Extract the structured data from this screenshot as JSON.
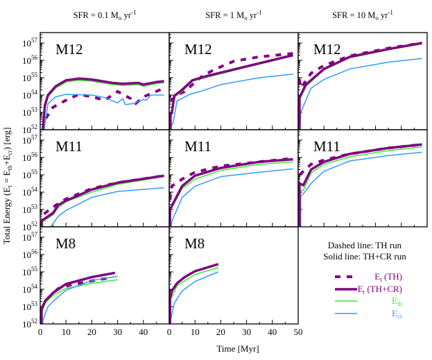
{
  "chart_data": {
    "type": "line",
    "column_titles": [
      {
        "prefix": "SFR = 0.1 M",
        "sub": "o",
        "unit": " yr",
        "sup": "-1"
      },
      {
        "prefix": "SFR = 1 M",
        "sub": "o",
        "unit": " yr",
        "sup": "-1"
      },
      {
        "prefix": "SFR = 10 M",
        "sub": "o",
        "unit": " yr",
        "sup": "-1"
      }
    ],
    "xlabel": "Time [Myr]",
    "ylabel": {
      "a": "Total Energy (E",
      "b": "t",
      "c": " = E",
      "d": "th",
      "e": "+E",
      "f": "cr",
      "g": ") [erg]"
    },
    "xlim": [
      0,
      50
    ],
    "ylim": [
      1e+52,
      4e+57
    ],
    "yscale": "log",
    "x_ticks": [
      "0",
      "10",
      "20",
      "30",
      "40",
      "50"
    ],
    "y_ticks": [
      {
        "base": "10",
        "exp": "52"
      },
      {
        "base": "10",
        "exp": "53"
      },
      {
        "base": "10",
        "exp": "54"
      },
      {
        "base": "10",
        "exp": "55"
      },
      {
        "base": "10",
        "exp": "56"
      },
      {
        "base": "10",
        "exp": "57"
      }
    ],
    "grid": false,
    "colors": {
      "total": "#800080",
      "thermal": "#33ee22",
      "cosmic_ray": "#3399ff"
    },
    "legend": {
      "note_1": "Dashed line: TH run",
      "note_2": "Solid line: TH+CR run",
      "placement": "bottom-right",
      "entries": [
        {
          "key": "dashed",
          "main": "E",
          "sub": "t",
          "rest": " (TH)",
          "color": "#800080"
        },
        {
          "key": "tot",
          "main": "E",
          "sub": "t",
          "rest": " (TH+CR)",
          "color": "#800080"
        },
        {
          "key": "th",
          "main": "E",
          "sub": "th",
          "rest": "",
          "color": "#33ee22"
        },
        {
          "key": "cr",
          "main": "E",
          "sub": "cr",
          "rest": "",
          "color": "#3399ff"
        }
      ]
    },
    "panels": [
      {
        "row": 0,
        "col": 0,
        "label": "M12",
        "tot": [
          [
            1,
            1e+52
          ],
          [
            1.8,
            2.5e+53
          ],
          [
            3,
            1e+54
          ],
          [
            6,
            3.2e+54
          ],
          [
            10,
            7.1e+54
          ],
          [
            15,
            8.9e+54
          ],
          [
            20,
            7.9e+54
          ],
          [
            28,
            5e+54
          ],
          [
            32,
            4.5e+54
          ],
          [
            38,
            5e+54
          ],
          [
            40,
            4e+54
          ],
          [
            45,
            5.6e+54
          ],
          [
            48,
            6.3e+54
          ]
        ],
        "th": [
          [
            1,
            1e+52
          ],
          [
            2,
            2e+53
          ],
          [
            3,
            7.9e+53
          ],
          [
            6,
            2.5e+54
          ],
          [
            10,
            5.6e+54
          ],
          [
            15,
            7.1e+54
          ],
          [
            20,
            6.3e+54
          ],
          [
            28,
            4e+54
          ],
          [
            32,
            3.5e+54
          ],
          [
            38,
            4e+54
          ],
          [
            40,
            3.2e+54
          ],
          [
            45,
            4.5e+54
          ],
          [
            48,
            5e+54
          ]
        ],
        "cr": [
          [
            1.5,
            1e+52
          ],
          [
            3,
            3.2e+53
          ],
          [
            6,
            7.9e+53
          ],
          [
            10,
            1.1e+54
          ],
          [
            20,
            1e+54
          ],
          [
            25,
            7.1e+53
          ],
          [
            30,
            3.5e+53
          ],
          [
            32,
            6.3e+53
          ],
          [
            33,
            2.8e+53
          ],
          [
            36,
            3.2e+53
          ],
          [
            40,
            5.6e+53
          ],
          [
            41,
            5e+53
          ],
          [
            43,
            1e+54
          ],
          [
            48,
            1e+54
          ]
        ],
        "dashed": [
          [
            1,
            1e+52
          ],
          [
            1.5,
            3.2e+52
          ],
          [
            5,
            2e+53
          ],
          [
            10,
            5e+53
          ],
          [
            15,
            1.1e+54
          ],
          [
            20,
            7.9e+53
          ],
          [
            25,
            5e+53
          ],
          [
            30,
            1.6e+54
          ],
          [
            35,
            6.3e+53
          ],
          [
            37,
            3.2e+53
          ],
          [
            40,
            7.9e+53
          ],
          [
            48,
            2.5e+54
          ]
        ]
      },
      {
        "row": 0,
        "col": 1,
        "label": "M12",
        "tot": [
          [
            0.5,
            1e+52
          ],
          [
            0.5,
            7.9e+52
          ],
          [
            1,
            8.9e+52
          ],
          [
            2,
            8.9e+53
          ],
          [
            5,
            2e+54
          ],
          [
            9,
            7.1e+54
          ],
          [
            15,
            1.3e+55
          ],
          [
            30,
            4.5e+55
          ],
          [
            48,
            2e+56
          ]
        ],
        "th": [
          [
            0.5,
            1e+52
          ],
          [
            0.5,
            6.3e+52
          ],
          [
            1,
            7.9e+52
          ],
          [
            2,
            7.9e+53
          ],
          [
            5,
            1.6e+54
          ],
          [
            9,
            6.3e+54
          ],
          [
            15,
            1.1e+55
          ],
          [
            30,
            4e+55
          ],
          [
            48,
            1.8e+56
          ]
        ],
        "cr": [
          [
            0.5,
            1e+52
          ],
          [
            1,
            2e+52
          ],
          [
            1.5,
            2.5e+52
          ],
          [
            3,
            4.5e+53
          ],
          [
            8,
            1.1e+54
          ],
          [
            12,
            1.6e+54
          ],
          [
            20,
            4e+54
          ],
          [
            35,
            1e+55
          ],
          [
            48,
            1.6e+55
          ]
        ],
        "dashed": [
          [
            0.5,
            4.5e+53
          ],
          [
            3,
            1e+54
          ],
          [
            6,
            1.6e+54
          ],
          [
            9,
            4e+54
          ],
          [
            13,
            1.3e+55
          ],
          [
            18,
            3.2e+55
          ],
          [
            25,
            8.9e+55
          ],
          [
            35,
            1.6e+56
          ],
          [
            48,
            2.5e+56
          ]
        ]
      },
      {
        "row": 0,
        "col": 2,
        "label": "M12",
        "tot": [
          [
            0.5,
            1e+52
          ],
          [
            0.5,
            7.1e+53
          ],
          [
            3,
            4e+54
          ],
          [
            10,
            3.2e+55
          ],
          [
            20,
            1.6e+56
          ],
          [
            35,
            4.5e+56
          ],
          [
            48,
            1e+57
          ]
        ],
        "th": [
          [
            0.5,
            1e+52
          ],
          [
            0.5,
            5e+53
          ],
          [
            3,
            3.2e+54
          ],
          [
            10,
            2.8e+55
          ],
          [
            20,
            1.4e+56
          ],
          [
            35,
            4e+56
          ],
          [
            48,
            8.9e+56
          ]
        ],
        "cr": [
          [
            0.7,
            1e+52
          ],
          [
            1,
            1e+53
          ],
          [
            5,
            2.5e+54
          ],
          [
            10,
            7.9e+54
          ],
          [
            20,
            3.2e+55
          ],
          [
            35,
            7.9e+55
          ],
          [
            48,
            1.3e+56
          ]
        ],
        "dashed": [
          [
            0.5,
            7.9e+54
          ],
          [
            1,
            2.5e+54
          ],
          [
            5,
            1.8e+55
          ],
          [
            10,
            5e+55
          ],
          [
            20,
            1.8e+56
          ],
          [
            35,
            5e+56
          ],
          [
            48,
            1e+57
          ]
        ]
      },
      {
        "row": 1,
        "col": 0,
        "label": "M11",
        "tot": [
          [
            0.5,
            1e+52
          ],
          [
            0.5,
            2.2e+52
          ],
          [
            1.5,
            2.8e+52
          ],
          [
            5,
            6.3e+52
          ],
          [
            7,
            1.8e+53
          ],
          [
            10,
            3.2e+53
          ],
          [
            20,
            1.4e+54
          ],
          [
            30,
            3.5e+54
          ],
          [
            48,
            8.9e+54
          ]
        ],
        "th": [
          [
            1,
            1e+52
          ],
          [
            1,
            2e+52
          ],
          [
            5,
            5e+52
          ],
          [
            7,
            1.3e+53
          ],
          [
            10,
            2.8e+53
          ],
          [
            20,
            1e+54
          ],
          [
            30,
            2.8e+54
          ],
          [
            48,
            7.9e+54
          ]
        ],
        "cr": [
          [
            4,
            1e+52
          ],
          [
            7,
            4e+52
          ],
          [
            10,
            8.9e+52
          ],
          [
            20,
            5e+53
          ],
          [
            30,
            1.1e+54
          ],
          [
            48,
            1.8e+54
          ]
        ],
        "dashed": [
          [
            1.5,
            5.6e+52
          ],
          [
            5,
            1.4e+53
          ],
          [
            10,
            4e+53
          ],
          [
            20,
            1.6e+54
          ],
          [
            30,
            3.5e+54
          ],
          [
            48,
            8.9e+54
          ]
        ]
      },
      {
        "row": 1,
        "col": 1,
        "label": "M11",
        "tot": [
          [
            0.3,
            1e+52
          ],
          [
            0.3,
            1e+53
          ],
          [
            5,
            2.2e+54
          ],
          [
            10,
            8.9e+54
          ],
          [
            20,
            2.5e+55
          ],
          [
            35,
            5.6e+55
          ],
          [
            48,
            7.9e+55
          ]
        ],
        "th": [
          [
            0.3,
            1e+52
          ],
          [
            0.3,
            7.9e+52
          ],
          [
            5,
            1.6e+54
          ],
          [
            10,
            5.6e+54
          ],
          [
            20,
            1.8e+55
          ],
          [
            35,
            4e+55
          ],
          [
            48,
            5.6e+55
          ]
        ],
        "cr": [
          [
            0.7,
            1e+52
          ],
          [
            1,
            2e+52
          ],
          [
            5,
            5e+53
          ],
          [
            10,
            2.2e+54
          ],
          [
            20,
            7.9e+54
          ],
          [
            35,
            1.4e+55
          ],
          [
            48,
            2.2e+55
          ]
        ],
        "dashed": [
          [
            0.3,
            3.5e+53
          ],
          [
            1,
            2.2e+54
          ],
          [
            5,
            5.6e+54
          ],
          [
            10,
            1.4e+55
          ],
          [
            20,
            3.2e+55
          ],
          [
            35,
            5.6e+55
          ],
          [
            48,
            8.9e+55
          ]
        ]
      },
      {
        "row": 1,
        "col": 2,
        "label": "M11",
        "tot": [
          [
            0.5,
            1e+52
          ],
          [
            0.5,
            3.2e+54
          ],
          [
            2,
            2.5e+54
          ],
          [
            5,
            2e+55
          ],
          [
            10,
            5.6e+55
          ],
          [
            20,
            1.6e+56
          ],
          [
            35,
            3.5e+56
          ],
          [
            48,
            5.6e+56
          ]
        ],
        "th": [
          [
            0.5,
            1e+52
          ],
          [
            0.5,
            1.3e+54
          ],
          [
            2,
            1.3e+54
          ],
          [
            5,
            1.3e+55
          ],
          [
            10,
            4e+55
          ],
          [
            20,
            1.1e+56
          ],
          [
            35,
            2.5e+56
          ],
          [
            48,
            4e+56
          ]
        ],
        "cr": [
          [
            1,
            1e+52
          ],
          [
            1,
            6.3e+53
          ],
          [
            2,
            7.9e+53
          ],
          [
            5,
            3.2e+54
          ],
          [
            10,
            1.6e+55
          ],
          [
            20,
            6.3e+55
          ],
          [
            35,
            1.3e+56
          ],
          [
            48,
            2e+56
          ]
        ],
        "dashed": [
          [
            0.5,
            1e+55
          ],
          [
            5,
            4e+55
          ],
          [
            10,
            7.1e+55
          ],
          [
            20,
            1.6e+56
          ],
          [
            35,
            3.5e+56
          ],
          [
            48,
            5.6e+56
          ]
        ]
      },
      {
        "row": 2,
        "col": 0,
        "label": "M8",
        "tot": [
          [
            0.5,
            1e+52
          ],
          [
            0.5,
            7.1e+52
          ],
          [
            2,
            2.2e+53
          ],
          [
            5,
            6.3e+53
          ],
          [
            10,
            2e+54
          ],
          [
            20,
            5e+54
          ],
          [
            29,
            8.9e+54
          ]
        ],
        "th": [
          [
            0.5,
            1e+52
          ],
          [
            0.5,
            4e+52
          ],
          [
            2,
            1.6e+53
          ],
          [
            5,
            4.5e+53
          ],
          [
            10,
            1.1e+54
          ],
          [
            20,
            2.2e+54
          ],
          [
            30,
            3.5e+54
          ]
        ],
        "cr": [
          [
            1,
            1e+52
          ],
          [
            1,
            1.6e+52
          ],
          [
            3,
            1e+53
          ],
          [
            5,
            2e+53
          ],
          [
            10,
            8.9e+53
          ],
          [
            20,
            3.2e+54
          ],
          [
            30,
            5.6e+54
          ]
        ],
        "dashed": [
          [
            0.5,
            7.1e+52
          ],
          [
            2,
            2.2e+53
          ],
          [
            7,
            1.1e+54
          ],
          [
            12,
            1.8e+54
          ],
          [
            17,
            2.5e+54
          ],
          [
            22,
            3.5e+54
          ],
          [
            27,
            4.5e+54
          ]
        ]
      },
      {
        "row": 2,
        "col": 1,
        "label": "M8",
        "tot": [
          [
            0.3,
            1e+52
          ],
          [
            0.3,
            2.8e+53
          ],
          [
            1,
            7.9e+53
          ],
          [
            3,
            2.2e+54
          ],
          [
            6,
            5e+54
          ],
          [
            10,
            1.1e+55
          ],
          [
            19,
            2.8e+55
          ]
        ],
        "th": [
          [
            0.3,
            1e+52
          ],
          [
            0.5,
            2.5e+53
          ],
          [
            3,
            1.6e+54
          ],
          [
            10,
            7.1e+54
          ],
          [
            19,
            1.8e+55
          ]
        ],
        "cr": [
          [
            0.5,
            1e+52
          ],
          [
            0.5,
            1.6e+52
          ],
          [
            2,
            1.6e+53
          ],
          [
            5,
            7.9e+53
          ],
          [
            10,
            2.8e+54
          ],
          [
            19,
            1e+55
          ]
        ]
      }
    ]
  }
}
